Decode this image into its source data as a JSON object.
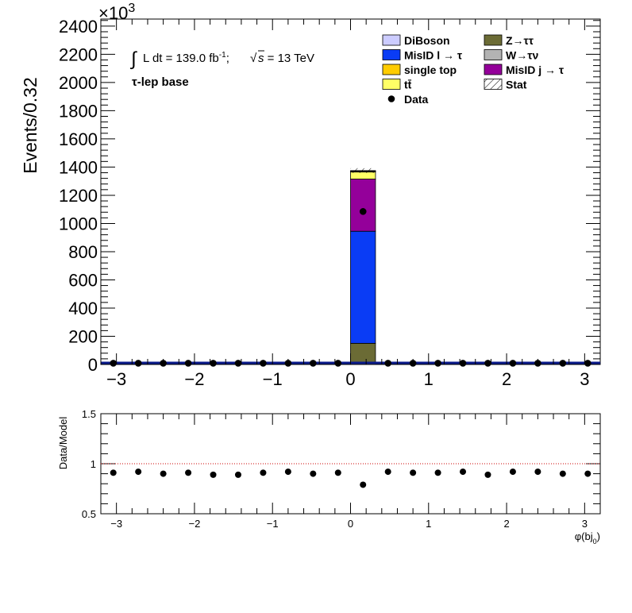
{
  "chart_data": [
    {
      "type": "bar",
      "stacked": true,
      "ylabel": "Events/0.32",
      "y_multiplier": "×10",
      "y_multiplier_exp": "3",
      "xlim": [
        -3.2,
        3.2
      ],
      "ylim": [
        0,
        2450
      ],
      "x_ticks": [
        -3,
        -2,
        -1,
        0,
        1,
        2,
        3
      ],
      "x_tick_labels": [
        "−3",
        "−2",
        "−1",
        "0",
        "1",
        "2",
        "3"
      ],
      "y_ticks": [
        0,
        200,
        400,
        600,
        800,
        1000,
        1200,
        1400,
        1600,
        1800,
        2000,
        2200,
        2400
      ],
      "y_tick_labels": [
        "0",
        "200",
        "400",
        "600",
        "800",
        "1000",
        "1200",
        "1400",
        "1600",
        "1800",
        "2000",
        "2200",
        "2400"
      ],
      "lumi_prefix": "L dt = 139.0 fb",
      "lumi_exp": "-1",
      "lumi_sep": ";",
      "sqrt_s": "s",
      "energy": " = 13 TeV",
      "region": "τ-lep base",
      "bin_edges": [
        -3.2,
        -2.88,
        -2.56,
        -2.24,
        -1.92,
        -1.6,
        -1.28,
        -0.96,
        -0.64,
        -0.32,
        0.0,
        0.32,
        0.64,
        0.96,
        1.28,
        1.6,
        1.92,
        2.24,
        2.56,
        2.88,
        3.2
      ],
      "series": [
        {
          "name": "Z→ττ",
          "color": "#6b6b35",
          "values": [
            3,
            3,
            3,
            3,
            3,
            3,
            3,
            3,
            3,
            3,
            150,
            3,
            3,
            3,
            3,
            3,
            3,
            3,
            3,
            3
          ]
        },
        {
          "name": "MisID l → τ",
          "color": "#0a3cf5",
          "values": [
            5,
            5,
            5,
            5,
            5,
            5,
            5,
            5,
            5,
            5,
            795,
            5,
            5,
            5,
            5,
            5,
            5,
            5,
            5,
            5
          ]
        },
        {
          "name": "MisID j → τ",
          "color": "#94009a",
          "values": [
            2,
            2,
            2,
            2,
            2,
            2,
            2,
            2,
            2,
            2,
            370,
            2,
            2,
            2,
            2,
            2,
            2,
            2,
            2,
            2
          ]
        },
        {
          "name": "tt̄",
          "color": "#ffff66",
          "values": [
            0,
            0,
            0,
            0,
            0,
            0,
            0,
            0,
            0,
            0,
            50,
            0,
            0,
            0,
            0,
            0,
            0,
            0,
            0,
            0
          ]
        },
        {
          "name": "single top",
          "color": "#ffcc00",
          "values": [
            0,
            0,
            0,
            0,
            0,
            0,
            0,
            0,
            0,
            0,
            5,
            0,
            0,
            0,
            0,
            0,
            0,
            0,
            0,
            0
          ]
        },
        {
          "name": "W→τν",
          "color": "#b3b3b3",
          "values": [
            0,
            0,
            0,
            0,
            0,
            0,
            0,
            0,
            0,
            0,
            3,
            0,
            0,
            0,
            0,
            0,
            0,
            0,
            0,
            0
          ]
        },
        {
          "name": "DiBoson",
          "color": "#ccccff",
          "values": [
            0,
            0,
            0,
            0,
            0,
            0,
            0,
            0,
            0,
            0,
            2,
            0,
            0,
            0,
            0,
            0,
            0,
            0,
            0,
            0
          ]
        }
      ],
      "data": {
        "name": "Data",
        "x": [
          -3.04,
          -2.72,
          -2.4,
          -2.08,
          -1.76,
          -1.44,
          -1.12,
          -0.8,
          -0.48,
          -0.16,
          0.16,
          0.48,
          0.8,
          1.12,
          1.44,
          1.76,
          2.08,
          2.4,
          2.72,
          3.04
        ],
        "y": [
          9,
          9,
          9,
          9,
          9,
          9,
          9,
          9,
          9,
          9,
          1085,
          9,
          9,
          9,
          9,
          9,
          9,
          9,
          9,
          9
        ]
      },
      "legend": {
        "placement": "top-right",
        "entries": [
          {
            "label": "DiBoson",
            "color": "#ccccff",
            "kind": "box"
          },
          {
            "label": "Z→ττ",
            "color": "#6b6b35",
            "kind": "box"
          },
          {
            "label": "MisID l  →  τ",
            "color": "#0a3cf5",
            "kind": "box"
          },
          {
            "label": "W→τν",
            "color": "#b3b3b3",
            "kind": "box"
          },
          {
            "label": "single top",
            "color": "#ffcc00",
            "kind": "box"
          },
          {
            "label": "MisID j  →  τ",
            "color": "#94009a",
            "kind": "box"
          },
          {
            "label": "tt̄",
            "color": "#ffff66",
            "kind": "box"
          },
          {
            "label": "Stat",
            "color": "#ffffff",
            "kind": "hatch"
          },
          {
            "label": "Data",
            "color": "#000000",
            "kind": "marker"
          }
        ]
      }
    },
    {
      "type": "scatter",
      "ylabel": "Data/Model",
      "xlabel": "φ(bj",
      "xlabel_sub": "0",
      "xlabel_close": ")",
      "xlim": [
        -3.2,
        3.2
      ],
      "ylim": [
        0.5,
        1.5
      ],
      "y_ticks": [
        0.5,
        1,
        1.5
      ],
      "y_tick_labels": [
        "0.5",
        "1",
        "1.5"
      ],
      "x_ticks": [
        -3,
        -2,
        -1,
        0,
        1,
        2,
        3
      ],
      "x_tick_labels": [
        "−3",
        "−2",
        "−1",
        "0",
        "1",
        "2",
        "3"
      ],
      "reference_line": 1,
      "x": [
        -3.04,
        -2.72,
        -2.4,
        -2.08,
        -1.76,
        -1.44,
        -1.12,
        -0.8,
        -0.48,
        -0.16,
        0.16,
        0.48,
        0.8,
        1.12,
        1.44,
        1.76,
        2.08,
        2.4,
        2.72,
        3.04
      ],
      "y": [
        0.91,
        0.92,
        0.9,
        0.91,
        0.89,
        0.89,
        0.91,
        0.92,
        0.9,
        0.91,
        0.79,
        0.92,
        0.91,
        0.91,
        0.92,
        0.89,
        0.92,
        0.92,
        0.9,
        0.9
      ]
    }
  ]
}
